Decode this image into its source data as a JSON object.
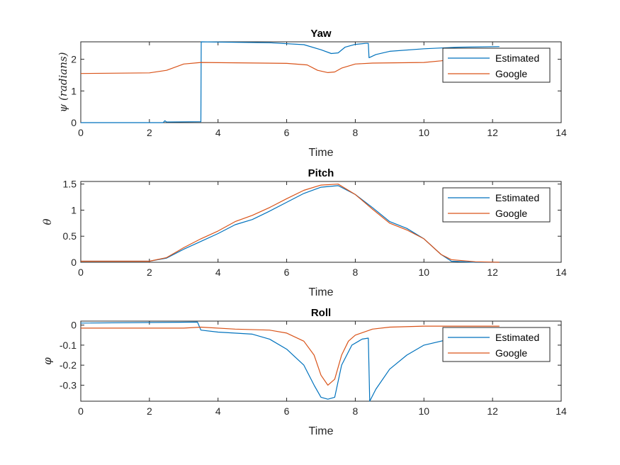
{
  "chart_data": [
    {
      "type": "line",
      "title": "Yaw",
      "xlabel": "Time",
      "ylabel": "ψ (radians)",
      "xlim": [
        0,
        14
      ],
      "ylim": [
        0,
        2.55
      ],
      "xticks": [
        "0",
        "2",
        "4",
        "6",
        "8",
        "10",
        "12",
        "14"
      ],
      "yticks": [
        "0",
        "1",
        "2"
      ],
      "legend_position": "top-right",
      "grid": false,
      "series": [
        {
          "name": "Estimated",
          "color": "#0072BD",
          "points": [
            [
              0,
              0.0
            ],
            [
              2.4,
              0.0
            ],
            [
              2.45,
              0.06
            ],
            [
              2.5,
              0.02
            ],
            [
              3.5,
              0.03
            ],
            [
              3.51,
              2.55
            ],
            [
              5.5,
              2.52
            ],
            [
              6.5,
              2.46
            ],
            [
              7.0,
              2.3
            ],
            [
              7.3,
              2.18
            ],
            [
              7.5,
              2.2
            ],
            [
              7.7,
              2.38
            ],
            [
              8.0,
              2.47
            ],
            [
              8.3,
              2.5
            ],
            [
              8.38,
              2.5
            ],
            [
              8.4,
              2.05
            ],
            [
              8.6,
              2.15
            ],
            [
              9.0,
              2.25
            ],
            [
              10.0,
              2.33
            ],
            [
              11.0,
              2.38
            ],
            [
              12.2,
              2.4
            ]
          ]
        },
        {
          "name": "Google",
          "color": "#D95319",
          "points": [
            [
              0,
              1.55
            ],
            [
              2.0,
              1.57
            ],
            [
              2.5,
              1.65
            ],
            [
              3.0,
              1.85
            ],
            [
              3.5,
              1.9
            ],
            [
              6.0,
              1.87
            ],
            [
              6.6,
              1.82
            ],
            [
              6.9,
              1.65
            ],
            [
              7.2,
              1.58
            ],
            [
              7.4,
              1.6
            ],
            [
              7.6,
              1.72
            ],
            [
              8.0,
              1.85
            ],
            [
              8.5,
              1.88
            ],
            [
              10.0,
              1.9
            ],
            [
              10.5,
              1.95
            ],
            [
              11.0,
              2.02
            ],
            [
              12.2,
              2.05
            ]
          ]
        }
      ]
    },
    {
      "type": "line",
      "title": "Pitch",
      "xlabel": "Time",
      "ylabel": "θ",
      "xlim": [
        0,
        14
      ],
      "ylim": [
        0,
        1.55
      ],
      "xticks": [
        "0",
        "2",
        "4",
        "6",
        "8",
        "10",
        "12",
        "14"
      ],
      "yticks": [
        "0",
        "0.5",
        "1",
        "1.5"
      ],
      "legend_position": "top-right",
      "grid": false,
      "series": [
        {
          "name": "Estimated",
          "color": "#0072BD",
          "points": [
            [
              0,
              0.02
            ],
            [
              2.0,
              0.02
            ],
            [
              2.5,
              0.08
            ],
            [
              3.0,
              0.25
            ],
            [
              3.5,
              0.4
            ],
            [
              4.0,
              0.55
            ],
            [
              4.5,
              0.72
            ],
            [
              5.0,
              0.82
            ],
            [
              5.5,
              0.98
            ],
            [
              6.0,
              1.15
            ],
            [
              6.5,
              1.32
            ],
            [
              7.0,
              1.44
            ],
            [
              7.5,
              1.47
            ],
            [
              8.0,
              1.3
            ],
            [
              8.5,
              1.05
            ],
            [
              9.0,
              0.78
            ],
            [
              9.5,
              0.65
            ],
            [
              10.0,
              0.45
            ],
            [
              10.5,
              0.15
            ],
            [
              10.8,
              0.02
            ],
            [
              11.5,
              0.0
            ],
            [
              12.2,
              0.0
            ]
          ]
        },
        {
          "name": "Google",
          "color": "#D95319",
          "points": [
            [
              0,
              0.02
            ],
            [
              2.0,
              0.02
            ],
            [
              2.5,
              0.09
            ],
            [
              3.0,
              0.28
            ],
            [
              3.5,
              0.45
            ],
            [
              4.0,
              0.6
            ],
            [
              4.5,
              0.78
            ],
            [
              5.0,
              0.9
            ],
            [
              5.5,
              1.05
            ],
            [
              6.0,
              1.22
            ],
            [
              6.5,
              1.38
            ],
            [
              7.0,
              1.48
            ],
            [
              7.5,
              1.5
            ],
            [
              8.0,
              1.3
            ],
            [
              8.5,
              1.02
            ],
            [
              9.0,
              0.75
            ],
            [
              9.5,
              0.62
            ],
            [
              10.0,
              0.45
            ],
            [
              10.5,
              0.15
            ],
            [
              10.8,
              0.05
            ],
            [
              11.5,
              0.01
            ],
            [
              12.2,
              0.0
            ]
          ]
        }
      ]
    },
    {
      "type": "line",
      "title": "Roll",
      "xlabel": "Time",
      "ylabel": "φ",
      "xlim": [
        0,
        14
      ],
      "ylim": [
        -0.38,
        0.02
      ],
      "xticks": [
        "0",
        "2",
        "4",
        "6",
        "8",
        "10",
        "12",
        "14"
      ],
      "yticks": [
        "0",
        "-0.1",
        "-0.2",
        "-0.3"
      ],
      "legend_position": "top-right",
      "grid": false,
      "series": [
        {
          "name": "Estimated",
          "color": "#0072BD",
          "points": [
            [
              0,
              0.01
            ],
            [
              3.4,
              0.015
            ],
            [
              3.5,
              -0.025
            ],
            [
              4.0,
              -0.035
            ],
            [
              5.0,
              -0.045
            ],
            [
              5.5,
              -0.07
            ],
            [
              6.0,
              -0.12
            ],
            [
              6.5,
              -0.2
            ],
            [
              6.8,
              -0.3
            ],
            [
              7.0,
              -0.36
            ],
            [
              7.2,
              -0.37
            ],
            [
              7.4,
              -0.36
            ],
            [
              7.6,
              -0.2
            ],
            [
              7.9,
              -0.1
            ],
            [
              8.2,
              -0.07
            ],
            [
              8.38,
              -0.065
            ],
            [
              8.42,
              -0.38
            ],
            [
              8.6,
              -0.32
            ],
            [
              9.0,
              -0.22
            ],
            [
              9.5,
              -0.15
            ],
            [
              10.0,
              -0.1
            ],
            [
              11.0,
              -0.06
            ],
            [
              12.2,
              -0.04
            ]
          ]
        },
        {
          "name": "Google",
          "color": "#D95319",
          "points": [
            [
              0,
              -0.015
            ],
            [
              3.0,
              -0.015
            ],
            [
              3.5,
              -0.01
            ],
            [
              4.5,
              -0.02
            ],
            [
              5.5,
              -0.025
            ],
            [
              6.0,
              -0.04
            ],
            [
              6.5,
              -0.08
            ],
            [
              6.8,
              -0.15
            ],
            [
              7.0,
              -0.25
            ],
            [
              7.2,
              -0.3
            ],
            [
              7.4,
              -0.27
            ],
            [
              7.6,
              -0.15
            ],
            [
              7.8,
              -0.08
            ],
            [
              8.0,
              -0.05
            ],
            [
              8.5,
              -0.02
            ],
            [
              9.0,
              -0.01
            ],
            [
              10.0,
              -0.005
            ],
            [
              11.0,
              -0.005
            ],
            [
              12.2,
              -0.005
            ]
          ]
        }
      ]
    }
  ]
}
